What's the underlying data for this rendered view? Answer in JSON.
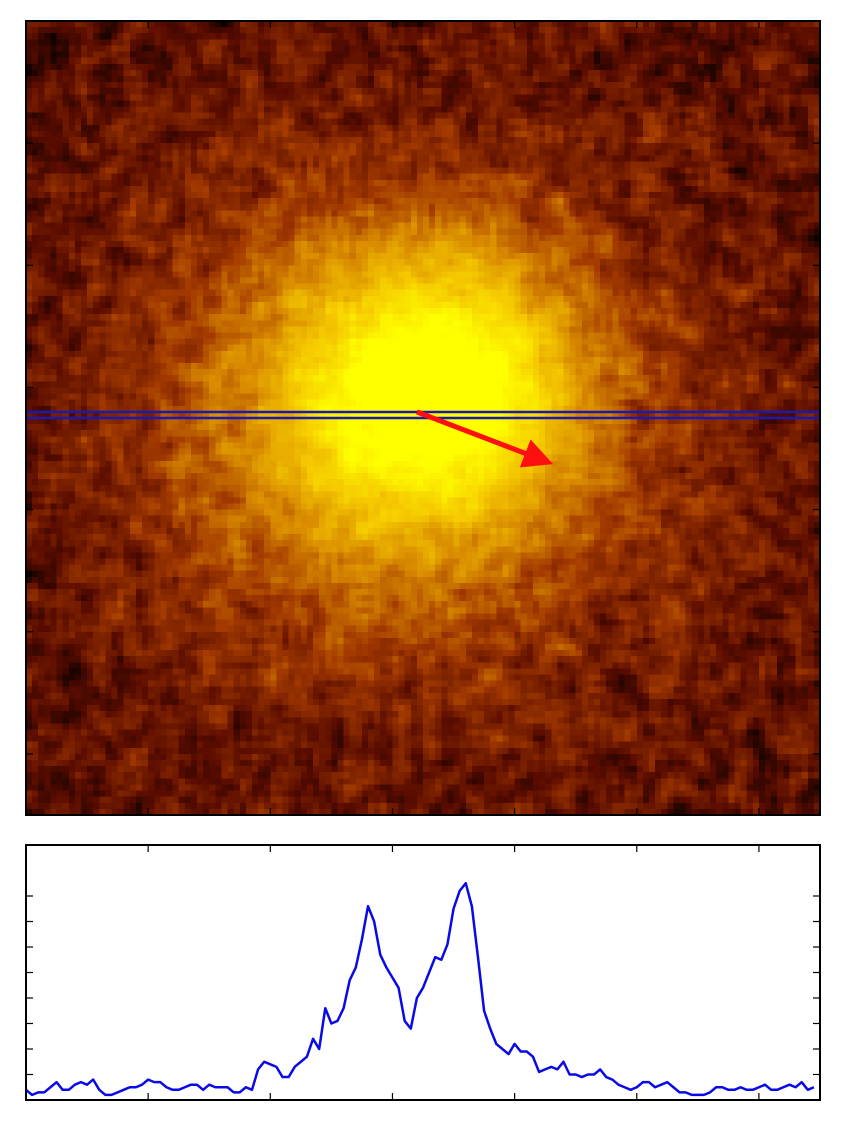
{
  "chart_data": [
    {
      "type": "heatmap",
      "title": "",
      "xlabel": "",
      "ylabel": "",
      "grid": false,
      "colormap": [
        "#000000",
        "#5a0c00",
        "#a33a00",
        "#d88a00",
        "#f5c800",
        "#ffff00"
      ],
      "image_size": [
        130,
        130
      ],
      "cut_row": 64,
      "arrow": {
        "from": [
          64,
          64
        ],
        "to": [
          85,
          72
        ],
        "color": "#ff1010"
      },
      "cut_color": "#1a1ab0"
    },
    {
      "type": "line",
      "title": "",
      "xlabel": "",
      "ylabel": "",
      "grid": false,
      "xlim": [
        0,
        130
      ],
      "ylim": [
        0,
        1
      ],
      "series": [
        {
          "color": "#0a0ae6",
          "x": [
            0,
            1,
            2,
            3,
            4,
            5,
            6,
            7,
            8,
            9,
            10,
            11,
            12,
            13,
            14,
            15,
            16,
            17,
            18,
            19,
            20,
            21,
            22,
            23,
            24,
            25,
            26,
            27,
            28,
            29,
            30,
            31,
            32,
            33,
            34,
            35,
            36,
            37,
            38,
            39,
            40,
            41,
            42,
            43,
            44,
            45,
            46,
            47,
            48,
            49,
            50,
            51,
            52,
            53,
            54,
            55,
            56,
            57,
            58,
            59,
            60,
            61,
            62,
            63,
            64,
            65,
            66,
            67,
            68,
            69,
            70,
            71,
            72,
            73,
            74,
            75,
            76,
            77,
            78,
            79,
            80,
            81,
            82,
            83,
            84,
            85,
            86,
            87,
            88,
            89,
            90,
            91,
            92,
            93,
            94,
            95,
            96,
            97,
            98,
            99,
            100,
            101,
            102,
            103,
            104,
            105,
            106,
            107,
            108,
            109,
            110,
            111,
            112,
            113,
            114,
            115,
            116,
            117,
            118,
            119,
            120,
            121,
            122,
            123,
            124,
            125,
            126,
            127,
            128,
            129
          ],
          "values": [
            0.04,
            0.02,
            0.03,
            0.03,
            0.05,
            0.07,
            0.04,
            0.04,
            0.06,
            0.07,
            0.06,
            0.08,
            0.04,
            0.02,
            0.02,
            0.03,
            0.04,
            0.05,
            0.05,
            0.06,
            0.08,
            0.07,
            0.07,
            0.05,
            0.04,
            0.04,
            0.05,
            0.06,
            0.06,
            0.04,
            0.06,
            0.05,
            0.05,
            0.05,
            0.03,
            0.03,
            0.05,
            0.04,
            0.12,
            0.15,
            0.14,
            0.13,
            0.09,
            0.09,
            0.13,
            0.15,
            0.17,
            0.24,
            0.2,
            0.36,
            0.3,
            0.31,
            0.36,
            0.47,
            0.52,
            0.63,
            0.76,
            0.7,
            0.57,
            0.52,
            0.48,
            0.44,
            0.31,
            0.28,
            0.4,
            0.44,
            0.5,
            0.56,
            0.55,
            0.61,
            0.75,
            0.82,
            0.85,
            0.76,
            0.56,
            0.35,
            0.28,
            0.22,
            0.2,
            0.18,
            0.22,
            0.19,
            0.19,
            0.17,
            0.11,
            0.12,
            0.13,
            0.12,
            0.15,
            0.1,
            0.1,
            0.09,
            0.1,
            0.1,
            0.12,
            0.09,
            0.08,
            0.06,
            0.05,
            0.04,
            0.05,
            0.07,
            0.07,
            0.05,
            0.06,
            0.07,
            0.05,
            0.03,
            0.03,
            0.02,
            0.02,
            0.02,
            0.03,
            0.05,
            0.05,
            0.04,
            0.04,
            0.05,
            0.04,
            0.04,
            0.05,
            0.06,
            0.04,
            0.04,
            0.05,
            0.06,
            0.05,
            0.07,
            0.04,
            0.05
          ]
        }
      ]
    }
  ]
}
